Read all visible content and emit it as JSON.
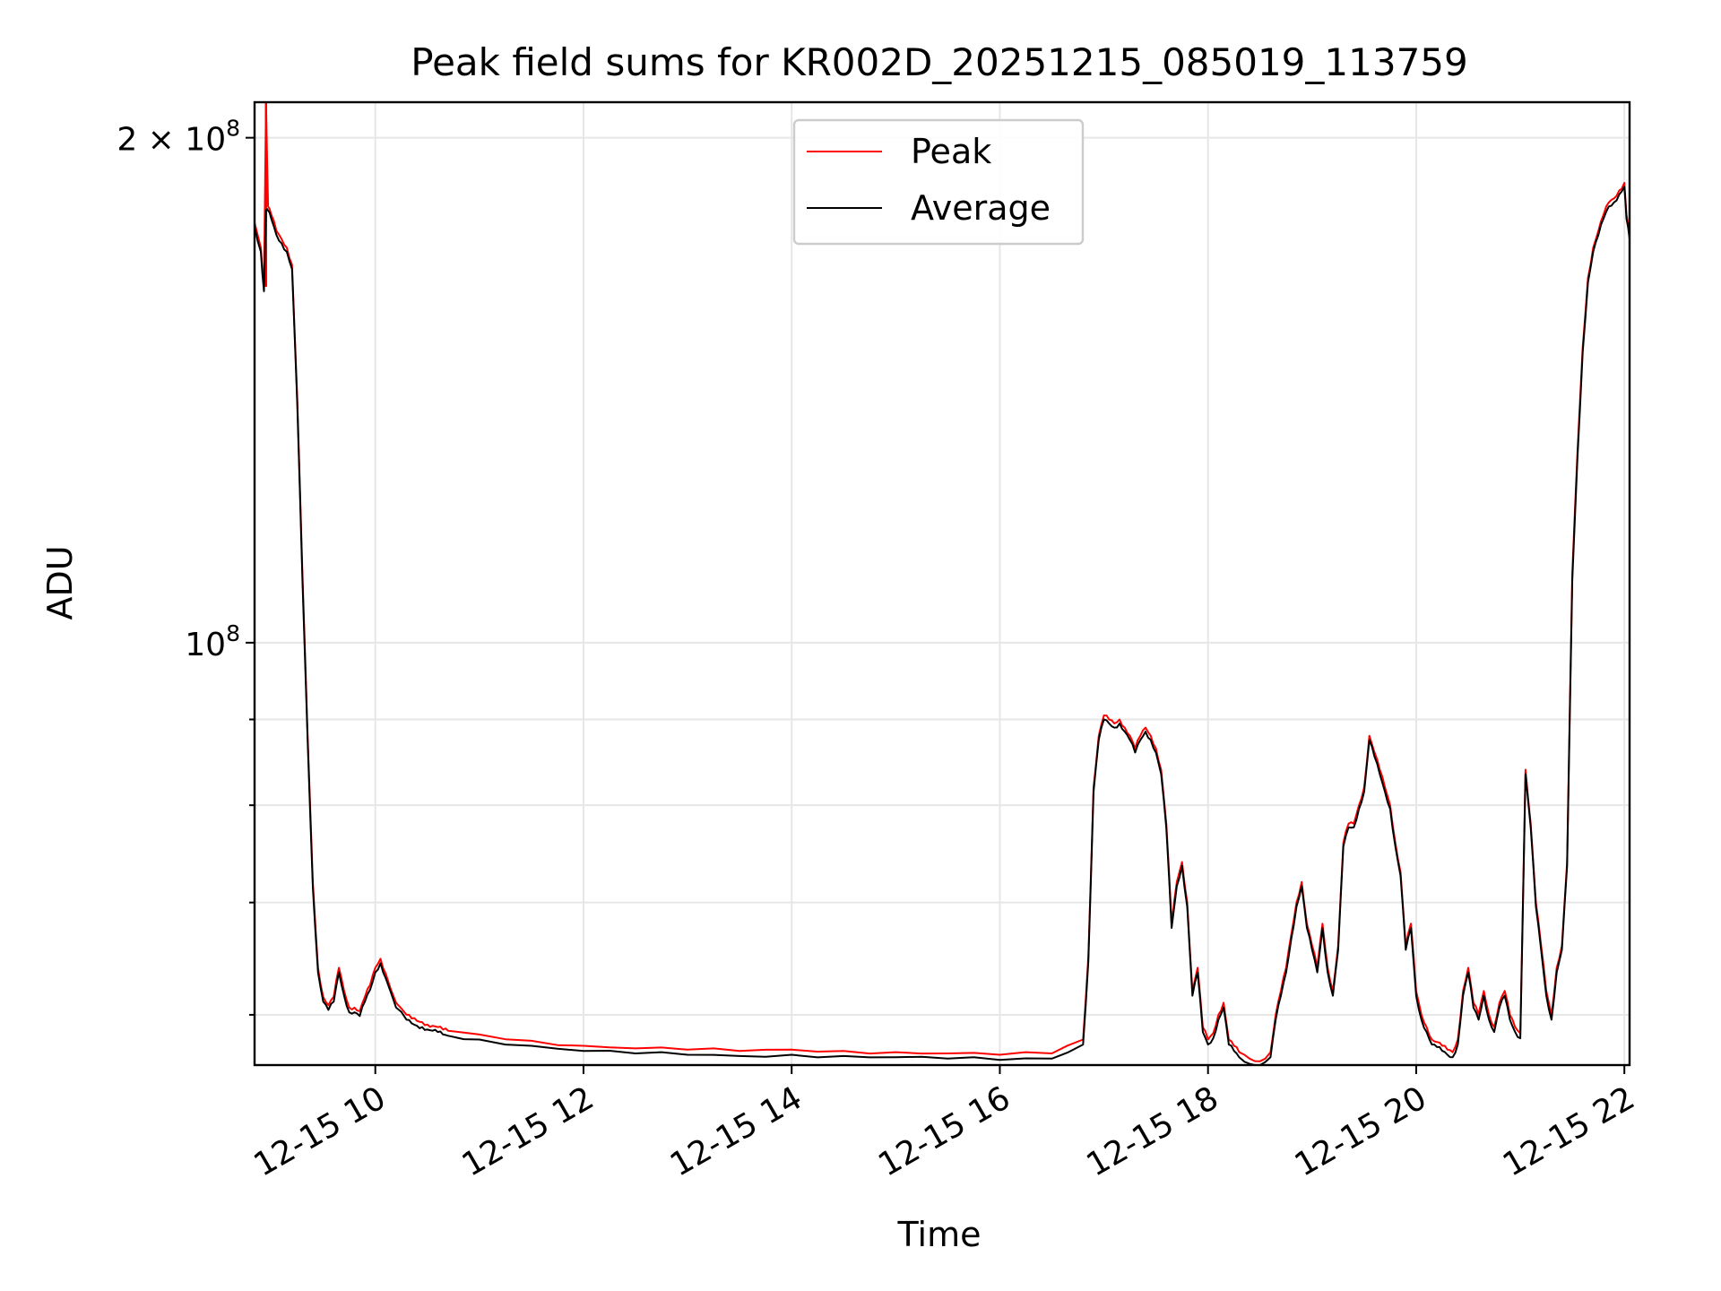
{
  "chart_data": {
    "type": "line",
    "title": "Peak field sums for KR002D_20251215_085019_113759",
    "xlabel": "Time",
    "ylabel": "ADU",
    "yscale": "log",
    "xlim": [
      8.84,
      22.05
    ],
    "ylim": [
      56000000,
      210000000
    ],
    "grid": true,
    "legend_position": "top-center",
    "x_ticks": [
      {
        "value": 10,
        "label": "12-15 10"
      },
      {
        "value": 12,
        "label": "12-15 12"
      },
      {
        "value": 14,
        "label": "12-15 14"
      },
      {
        "value": 16,
        "label": "12-15 16"
      },
      {
        "value": 18,
        "label": "12-15 18"
      },
      {
        "value": 20,
        "label": "12-15 20"
      },
      {
        "value": 22,
        "label": "12-15 22"
      }
    ],
    "y_major_ticks": [
      {
        "value": 100000000,
        "base": "10",
        "exp": "8"
      },
      {
        "value": 200000000,
        "base": "2 × 10",
        "exp": "8"
      }
    ],
    "y_minor_ticks": [
      60000000,
      70000000,
      80000000,
      90000000
    ],
    "series": [
      {
        "name": "Peak",
        "color": "#ff0000",
        "x": [
          8.84,
          8.9,
          8.93,
          8.95,
          8.97,
          9.0,
          9.05,
          9.1,
          9.15,
          9.2,
          9.25,
          9.3,
          9.35,
          9.4,
          9.45,
          9.5,
          9.55,
          9.6,
          9.65,
          9.7,
          9.75,
          9.8,
          9.85,
          9.9,
          9.95,
          10.0,
          10.05,
          10.1,
          10.2,
          10.3,
          10.35,
          10.4,
          10.45,
          10.5,
          10.55,
          10.6,
          10.65,
          10.7,
          11.0,
          11.5,
          12.0,
          12.5,
          13.0,
          13.5,
          14.0,
          14.5,
          15.0,
          15.5,
          16.0,
          16.5,
          16.8,
          16.85,
          16.9,
          16.95,
          17.0,
          17.05,
          17.1,
          17.15,
          17.2,
          17.25,
          17.3,
          17.35,
          17.4,
          17.45,
          17.5,
          17.55,
          17.6,
          17.65,
          17.7,
          17.75,
          17.8,
          17.85,
          17.9,
          17.95,
          18.0,
          18.05,
          18.1,
          18.15,
          18.2,
          18.25,
          18.3,
          18.4,
          18.5,
          18.6,
          18.65,
          18.7,
          18.75,
          18.8,
          18.85,
          18.9,
          18.95,
          19.0,
          19.05,
          19.1,
          19.15,
          19.2,
          19.25,
          19.3,
          19.35,
          19.4,
          19.45,
          19.5,
          19.55,
          19.6,
          19.65,
          19.7,
          19.75,
          19.8,
          19.85,
          19.9,
          19.95,
          20.0,
          20.05,
          20.1,
          20.15,
          20.2,
          20.25,
          20.3,
          20.35,
          20.4,
          20.45,
          20.5,
          20.55,
          20.6,
          20.65,
          20.7,
          20.75,
          20.8,
          20.85,
          20.9,
          20.95,
          21.0,
          21.05,
          21.1,
          21.15,
          21.2,
          21.25,
          21.3,
          21.35,
          21.4,
          21.45,
          21.5,
          21.55,
          21.6,
          21.65,
          21.7,
          21.75,
          21.8,
          21.85,
          21.9,
          21.95,
          22.0,
          22.02,
          22.05
        ],
        "values": [
          178000000,
          172000000,
          163000000,
          214000000,
          182000000,
          180000000,
          176000000,
          174000000,
          172000000,
          168000000,
          140000000,
          110000000,
          88000000,
          72000000,
          64000000,
          61500000,
          60800000,
          61500000,
          64000000,
          62000000,
          60600000,
          60600000,
          60300000,
          61500000,
          62500000,
          64000000,
          64800000,
          63500000,
          61000000,
          60000000,
          59700000,
          59500000,
          59400000,
          59200000,
          59100000,
          59000000,
          58800000,
          58700000,
          58400000,
          57900000,
          57500000,
          57300000,
          57200000,
          57100000,
          57200000,
          57100000,
          57000000,
          56900000,
          56800000,
          56900000,
          58000000,
          65000000,
          82000000,
          88000000,
          90500000,
          90000000,
          89500000,
          90000000,
          89000000,
          88000000,
          86500000,
          88000000,
          89000000,
          88000000,
          86500000,
          84000000,
          78000000,
          68000000,
          72000000,
          74000000,
          70000000,
          62000000,
          64000000,
          59000000,
          58000000,
          58500000,
          60000000,
          61000000,
          58000000,
          57500000,
          57000000,
          56500000,
          56300000,
          57000000,
          60000000,
          62000000,
          64000000,
          67000000,
          70000000,
          72000000,
          68000000,
          66000000,
          64000000,
          68000000,
          64000000,
          62000000,
          66000000,
          76000000,
          78000000,
          78000000,
          80000000,
          82000000,
          88000000,
          86000000,
          84000000,
          82000000,
          80000000,
          76000000,
          73000000,
          66000000,
          68000000,
          62000000,
          60000000,
          59000000,
          58000000,
          57800000,
          57500000,
          57200000,
          57000000,
          58000000,
          62000000,
          64000000,
          61000000,
          60000000,
          62000000,
          60000000,
          59000000,
          61000000,
          62000000,
          60000000,
          59000000,
          58500000,
          84000000,
          78000000,
          70000000,
          66000000,
          62000000,
          60000000,
          64000000,
          66000000,
          74000000,
          110000000,
          130000000,
          150000000,
          165000000,
          172000000,
          176000000,
          180000000,
          183000000,
          184000000,
          186000000,
          188000000,
          180000000,
          175000000
        ],
        "spikes": [
          [
            8.95,
            214000000
          ]
        ]
      },
      {
        "name": "Average",
        "color": "#000000",
        "x": [
          8.84,
          8.9,
          8.93,
          8.95,
          8.97,
          9.0,
          9.05,
          9.1,
          9.15,
          9.2,
          9.25,
          9.3,
          9.35,
          9.4,
          9.45,
          9.5,
          9.55,
          9.6,
          9.65,
          9.7,
          9.75,
          9.8,
          9.85,
          9.9,
          9.95,
          10.0,
          10.05,
          10.1,
          10.2,
          10.3,
          10.35,
          10.4,
          10.45,
          10.5,
          10.55,
          10.6,
          10.65,
          10.7,
          11.0,
          11.5,
          12.0,
          12.5,
          13.0,
          13.5,
          14.0,
          14.5,
          15.0,
          15.5,
          16.0,
          16.5,
          16.8,
          16.85,
          16.9,
          16.95,
          17.0,
          17.05,
          17.1,
          17.15,
          17.2,
          17.25,
          17.3,
          17.35,
          17.4,
          17.45,
          17.5,
          17.55,
          17.6,
          17.65,
          17.7,
          17.75,
          17.8,
          17.85,
          17.9,
          17.95,
          18.0,
          18.05,
          18.1,
          18.15,
          18.2,
          18.25,
          18.3,
          18.4,
          18.5,
          18.6,
          18.65,
          18.7,
          18.75,
          18.8,
          18.85,
          18.9,
          18.95,
          19.0,
          19.05,
          19.1,
          19.15,
          19.2,
          19.25,
          19.3,
          19.35,
          19.4,
          19.45,
          19.5,
          19.55,
          19.6,
          19.65,
          19.7,
          19.75,
          19.8,
          19.85,
          19.9,
          19.95,
          20.0,
          20.05,
          20.1,
          20.15,
          20.2,
          20.25,
          20.3,
          20.35,
          20.4,
          20.45,
          20.5,
          20.55,
          20.6,
          20.65,
          20.7,
          20.75,
          20.8,
          20.85,
          20.9,
          20.95,
          21.0,
          21.05,
          21.1,
          21.15,
          21.2,
          21.25,
          21.3,
          21.35,
          21.4,
          21.45,
          21.5,
          21.55,
          21.6,
          21.65,
          21.7,
          21.75,
          21.8,
          21.85,
          21.9,
          21.95,
          22.0,
          22.02,
          22.05
        ],
        "values": [
          177000000,
          171000000,
          162000000,
          181000000,
          181000000,
          179000000,
          175000000,
          173000000,
          171000000,
          167000000,
          139000000,
          109000000,
          87500000,
          71500000,
          63600000,
          61100000,
          60400000,
          61100000,
          63600000,
          61600000,
          60200000,
          60200000,
          59900000,
          61100000,
          62100000,
          63600000,
          64400000,
          63100000,
          60600000,
          59600000,
          59300000,
          59100000,
          59000000,
          58800000,
          58700000,
          58600000,
          58400000,
          58300000,
          58000000,
          57500000,
          57100000,
          56900000,
          56800000,
          56700000,
          56800000,
          56700000,
          56600000,
          56500000,
          56400000,
          56500000,
          57600000,
          64600000,
          81500000,
          87500000,
          90000000,
          89500000,
          89000000,
          89500000,
          88500000,
          87500000,
          86000000,
          87500000,
          88500000,
          87500000,
          86000000,
          83500000,
          77500000,
          67600000,
          71600000,
          73600000,
          69600000,
          61600000,
          63600000,
          58600000,
          57600000,
          58100000,
          59600000,
          60600000,
          57600000,
          57100000,
          56600000,
          56100000,
          55900000,
          56600000,
          59600000,
          61600000,
          63600000,
          66600000,
          69600000,
          71600000,
          67600000,
          65600000,
          63600000,
          67600000,
          63600000,
          61600000,
          65600000,
          75600000,
          77600000,
          77600000,
          79600000,
          81500000,
          87500000,
          85500000,
          83500000,
          81500000,
          79600000,
          75600000,
          72600000,
          65600000,
          67600000,
          61600000,
          59600000,
          58600000,
          57600000,
          57400000,
          57100000,
          56800000,
          56600000,
          57600000,
          61600000,
          63600000,
          60600000,
          59600000,
          61600000,
          59600000,
          58600000,
          60600000,
          61600000,
          59600000,
          58600000,
          58100000,
          83500000,
          77600000,
          69600000,
          65600000,
          61600000,
          59600000,
          63600000,
          65600000,
          73600000,
          109000000,
          129000000,
          149000000,
          164000000,
          171000000,
          175000000,
          179000000,
          182000000,
          183000000,
          185000000,
          187000000,
          179000000,
          174000000
        ],
        "spikes": []
      }
    ]
  }
}
